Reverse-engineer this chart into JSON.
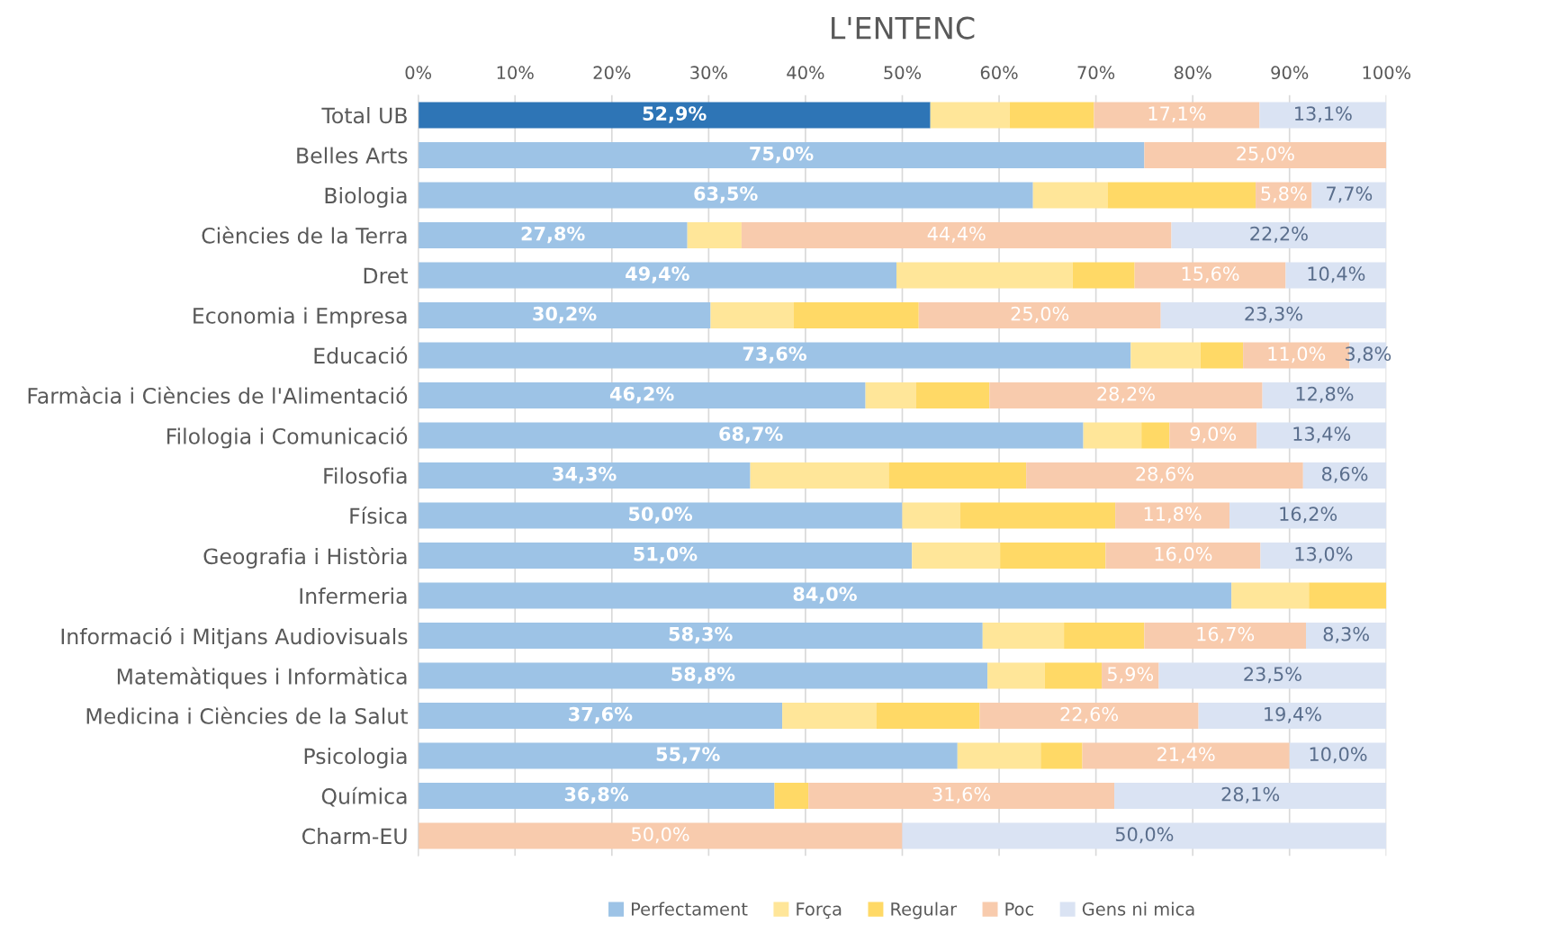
{
  "chart_data": {
    "type": "bar",
    "orientation": "horizontal",
    "stacked": true,
    "title": "L'ENTENC",
    "categories": [
      "Total UB",
      "Belles Arts",
      "Biologia",
      "Ciències de la Terra",
      "Dret",
      "Economia i Empresa",
      "Educació",
      "Farmàcia i Ciències de l'Alimentació",
      "Filologia i Comunicació",
      "Filosofia",
      "Física",
      "Geografia i Història",
      "Infermeria",
      "Informació i Mitjans Audiovisuals",
      "Matemàtiques i Informàtica",
      "Medicina i Ciències de la Salut",
      "Psicologia",
      "Química",
      "Charm-EU"
    ],
    "series": [
      {
        "name": "Perfectament",
        "color": "#9dc3e6",
        "colors": [
          "#2e75b6",
          "#9dc3e6",
          "#9dc3e6",
          "#9dc3e6",
          "#9dc3e6",
          "#9dc3e6",
          "#9dc3e6",
          "#9dc3e6",
          "#9dc3e6",
          "#9dc3e6",
          "#9dc3e6",
          "#9dc3e6",
          "#9dc3e6",
          "#9dc3e6",
          "#9dc3e6",
          "#9dc3e6",
          "#9dc3e6",
          "#9dc3e6",
          "#9dc3e6"
        ],
        "values": [
          52.9,
          75.0,
          63.5,
          27.8,
          49.4,
          30.2,
          73.6,
          46.2,
          68.7,
          34.3,
          50.0,
          51.0,
          84.0,
          58.3,
          58.8,
          37.6,
          55.7,
          36.8,
          0
        ],
        "value_labels": [
          "52,9%",
          "75,0%",
          "63,5%",
          "27,8%",
          "49,4%",
          "30,2%",
          "73,6%",
          "46,2%",
          "68,7%",
          "34,3%",
          "50,0%",
          "51,0%",
          "84,0%",
          "58,3%",
          "58,8%",
          "37,6%",
          "55,7%",
          "36,8%",
          null
        ]
      },
      {
        "name": "Força",
        "color": "#ffe699",
        "values": [
          8.2,
          0,
          7.7,
          5.6,
          18.2,
          8.6,
          7.2,
          5.2,
          6.0,
          14.3,
          6.0,
          9.1,
          8.0,
          8.4,
          5.9,
          9.7,
          8.6,
          0,
          0
        ]
      },
      {
        "name": "Regular",
        "color": "#ffd966",
        "values": [
          8.7,
          0,
          15.3,
          0,
          6.4,
          12.9,
          4.4,
          7.6,
          2.9,
          14.2,
          16.0,
          10.9,
          8.0,
          8.3,
          5.9,
          10.7,
          4.3,
          3.5,
          0
        ]
      },
      {
        "name": "Poc",
        "color": "#f8cbad",
        "values": [
          17.1,
          25.0,
          5.8,
          44.4,
          15.6,
          25.0,
          11.0,
          28.2,
          9.0,
          28.6,
          11.8,
          16.0,
          0,
          16.7,
          5.9,
          22.6,
          21.4,
          31.6,
          50.0
        ],
        "value_labels": [
          "17,1%",
          "25,0%",
          "5,8%",
          "44,4%",
          "15,6%",
          "25,0%",
          "11,0%",
          "28,2%",
          "9,0%",
          "28,6%",
          "11,8%",
          "16,0%",
          null,
          "16,7%",
          "5,9%",
          "22,6%",
          "21,4%",
          "31,6%",
          "50,0%"
        ]
      },
      {
        "name": "Gens ni mica",
        "color": "#dae3f3",
        "values": [
          13.1,
          0,
          7.7,
          22.2,
          10.4,
          23.3,
          3.8,
          12.8,
          13.4,
          8.6,
          16.2,
          13.0,
          0,
          8.3,
          23.5,
          19.4,
          10.0,
          28.1,
          50.0
        ],
        "value_labels": [
          "13,1%",
          null,
          "7,7%",
          "22,2%",
          "10,4%",
          "23,3%",
          "3,8%",
          "12,8%",
          "13,4%",
          "8,6%",
          "16,2%",
          "13,0%",
          null,
          "8,3%",
          "23,5%",
          "19,4%",
          "10,0%",
          "28,1%",
          "50,0%"
        ]
      }
    ],
    "xlim": [
      0,
      100
    ],
    "xticks": [
      {
        "value": 0,
        "label": "0%"
      },
      {
        "value": 10,
        "label": "10%"
      },
      {
        "value": 20,
        "label": "20%"
      },
      {
        "value": 30,
        "label": "30%"
      },
      {
        "value": 40,
        "label": "40%"
      },
      {
        "value": 50,
        "label": "50%"
      },
      {
        "value": 60,
        "label": "60%"
      },
      {
        "value": 70,
        "label": "70%"
      },
      {
        "value": 80,
        "label": "80%"
      },
      {
        "value": 90,
        "label": "90%"
      },
      {
        "value": 100,
        "label": "100%"
      }
    ],
    "grid": "x",
    "legend": "bottom"
  }
}
